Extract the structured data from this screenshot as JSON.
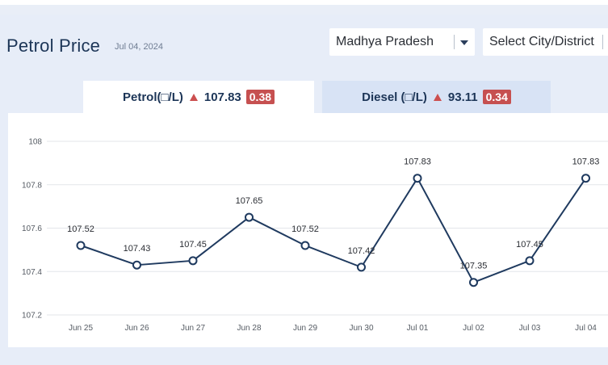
{
  "header": {
    "title": "Petrol Price",
    "date": "Jul 04, 2024"
  },
  "filters": {
    "state": "Madhya Pradesh",
    "city_placeholder": "Select City/District"
  },
  "tabs": [
    {
      "label": "Petrol(□/L)",
      "price": "107.83",
      "change": "0.38",
      "trend_icon": "up-triangle-icon"
    },
    {
      "label": "Diesel (□/L)",
      "price": "93.11",
      "change": "0.34",
      "trend_icon": "up-triangle-icon"
    }
  ],
  "colors": {
    "line": "#1f3a5f",
    "up": "#cc4f4f",
    "active_tab": "#ffffff",
    "inactive_tab": "#d8e3f5"
  },
  "chart_data": {
    "type": "line",
    "x": [
      "Jun 25",
      "Jun 26",
      "Jun 27",
      "Jun 28",
      "Jun 29",
      "Jun 30",
      "Jul 01",
      "Jul 02",
      "Jul 03",
      "Jul 04"
    ],
    "values": [
      107.52,
      107.43,
      107.45,
      107.65,
      107.52,
      107.42,
      107.83,
      107.35,
      107.45,
      107.83
    ],
    "data_labels": [
      "107.52",
      "107.43",
      "107.45",
      "107.65",
      "107.52",
      "107.42",
      "107.83",
      "107.35",
      "107.45",
      "107.83"
    ],
    "yticks": [
      "107.2",
      "107.4",
      "107.6",
      "107.8",
      "108"
    ],
    "ytick_values": [
      107.2,
      107.4,
      107.6,
      107.8,
      108
    ],
    "ylim": [
      107.2,
      108
    ],
    "grid": true,
    "title": "",
    "xlabel": "",
    "ylabel": ""
  }
}
